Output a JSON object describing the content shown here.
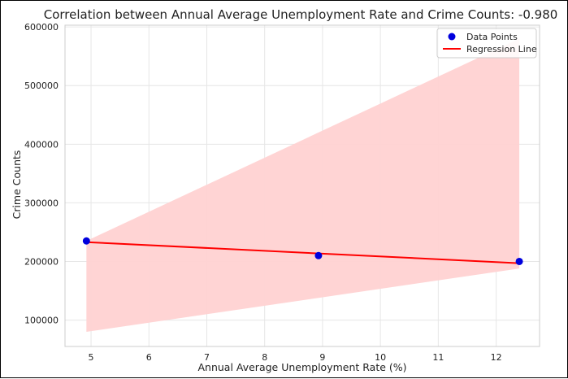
{
  "chart_data": {
    "type": "scatter",
    "title": "Correlation between Annual Average Unemployment Rate and Crime Counts: -0.980",
    "xlabel": "Annual Average Unemployment Rate (%)",
    "ylabel": "Crime Counts",
    "xlim": [
      4.55,
      12.75
    ],
    "ylim": [
      55000,
      603000
    ],
    "xticks": [
      5,
      6,
      7,
      8,
      9,
      10,
      11,
      12
    ],
    "yticks": [
      100000,
      200000,
      300000,
      400000,
      500000,
      600000
    ],
    "grid": true,
    "legend_placement": "top-right",
    "colors": {
      "points": "#0000dd",
      "line": "#ff0000",
      "band": "#ffd2d2"
    },
    "series": [
      {
        "name": "Data Points",
        "kind": "scatter",
        "x": [
          4.92,
          8.93,
          12.4
        ],
        "y": [
          235000,
          210000,
          200000
        ]
      },
      {
        "name": "Regression Line",
        "kind": "line",
        "x": [
          4.92,
          12.4
        ],
        "y": [
          233000,
          197000
        ]
      }
    ],
    "confidence_band": {
      "x": [
        4.92,
        12.4
      ],
      "upper": [
        235000,
        580000
      ],
      "lower": [
        80000,
        188000
      ]
    }
  }
}
